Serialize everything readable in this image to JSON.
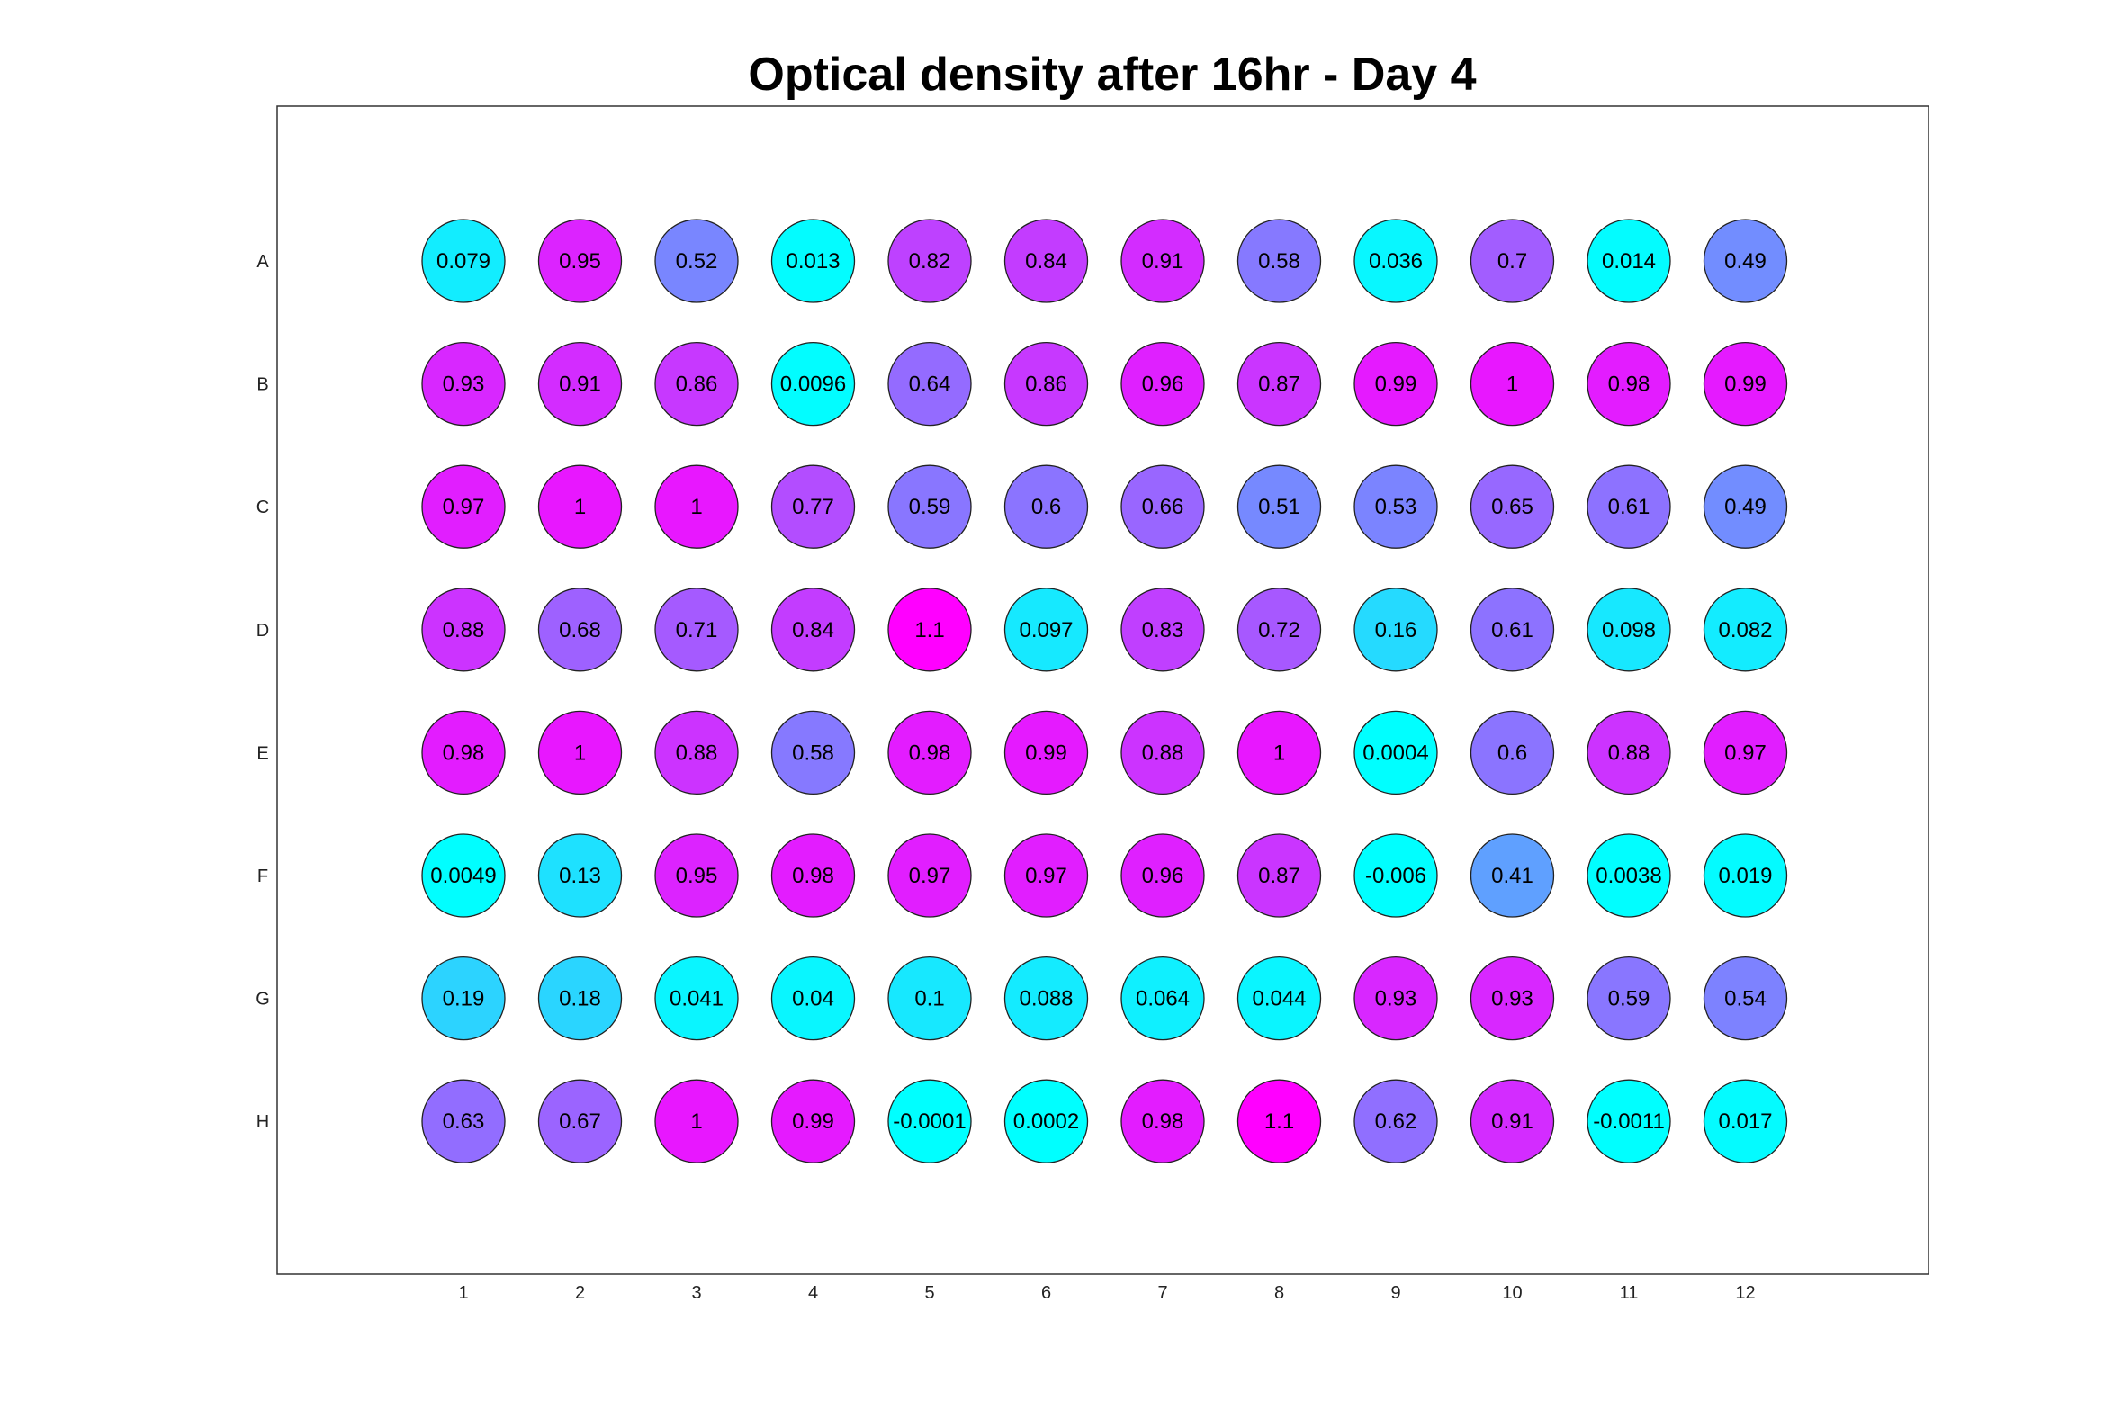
{
  "chart_data": {
    "type": "heatmap",
    "title": "Optical density after 16hr - Day 4",
    "xlabel": "",
    "ylabel": "",
    "rows": [
      "A",
      "B",
      "C",
      "D",
      "E",
      "F",
      "G",
      "H"
    ],
    "columns": [
      "1",
      "2",
      "3",
      "4",
      "5",
      "6",
      "7",
      "8",
      "9",
      "10",
      "11",
      "12"
    ],
    "values": [
      [
        "0.079",
        "0.95",
        "0.52",
        "0.013",
        "0.82",
        "0.84",
        "0.91",
        "0.58",
        "0.036",
        "0.7",
        "0.014",
        "0.49"
      ],
      [
        "0.93",
        "0.91",
        "0.86",
        "0.0096",
        "0.64",
        "0.86",
        "0.96",
        "0.87",
        "0.99",
        "1",
        "0.98",
        "0.99"
      ],
      [
        "0.97",
        "1",
        "1",
        "0.77",
        "0.59",
        "0.6",
        "0.66",
        "0.51",
        "0.53",
        "0.65",
        "0.61",
        "0.49"
      ],
      [
        "0.88",
        "0.68",
        "0.71",
        "0.84",
        "1.1",
        "0.097",
        "0.83",
        "0.72",
        "0.16",
        "0.61",
        "0.098",
        "0.082"
      ],
      [
        "0.98",
        "1",
        "0.88",
        "0.58",
        "0.98",
        "0.99",
        "0.88",
        "1",
        "0.0004",
        "0.6",
        "0.88",
        "0.97"
      ],
      [
        "0.0049",
        "0.13",
        "0.95",
        "0.98",
        "0.97",
        "0.97",
        "0.96",
        "0.87",
        "-0.006",
        "0.41",
        "0.0038",
        "0.019"
      ],
      [
        "0.19",
        "0.18",
        "0.041",
        "0.04",
        "0.1",
        "0.088",
        "0.064",
        "0.044",
        "0.93",
        "0.93",
        "0.59",
        "0.54"
      ],
      [
        "0.63",
        "0.67",
        "1",
        "0.99",
        "-0.0001",
        "0.0002",
        "0.98",
        "1.1",
        "0.62",
        "0.91",
        "-0.0011",
        "0.017"
      ]
    ],
    "colormap": [
      "#00ffff",
      "#ff00ff"
    ],
    "color_range": [
      0,
      1.1
    ],
    "grid": false,
    "legend": "none"
  }
}
